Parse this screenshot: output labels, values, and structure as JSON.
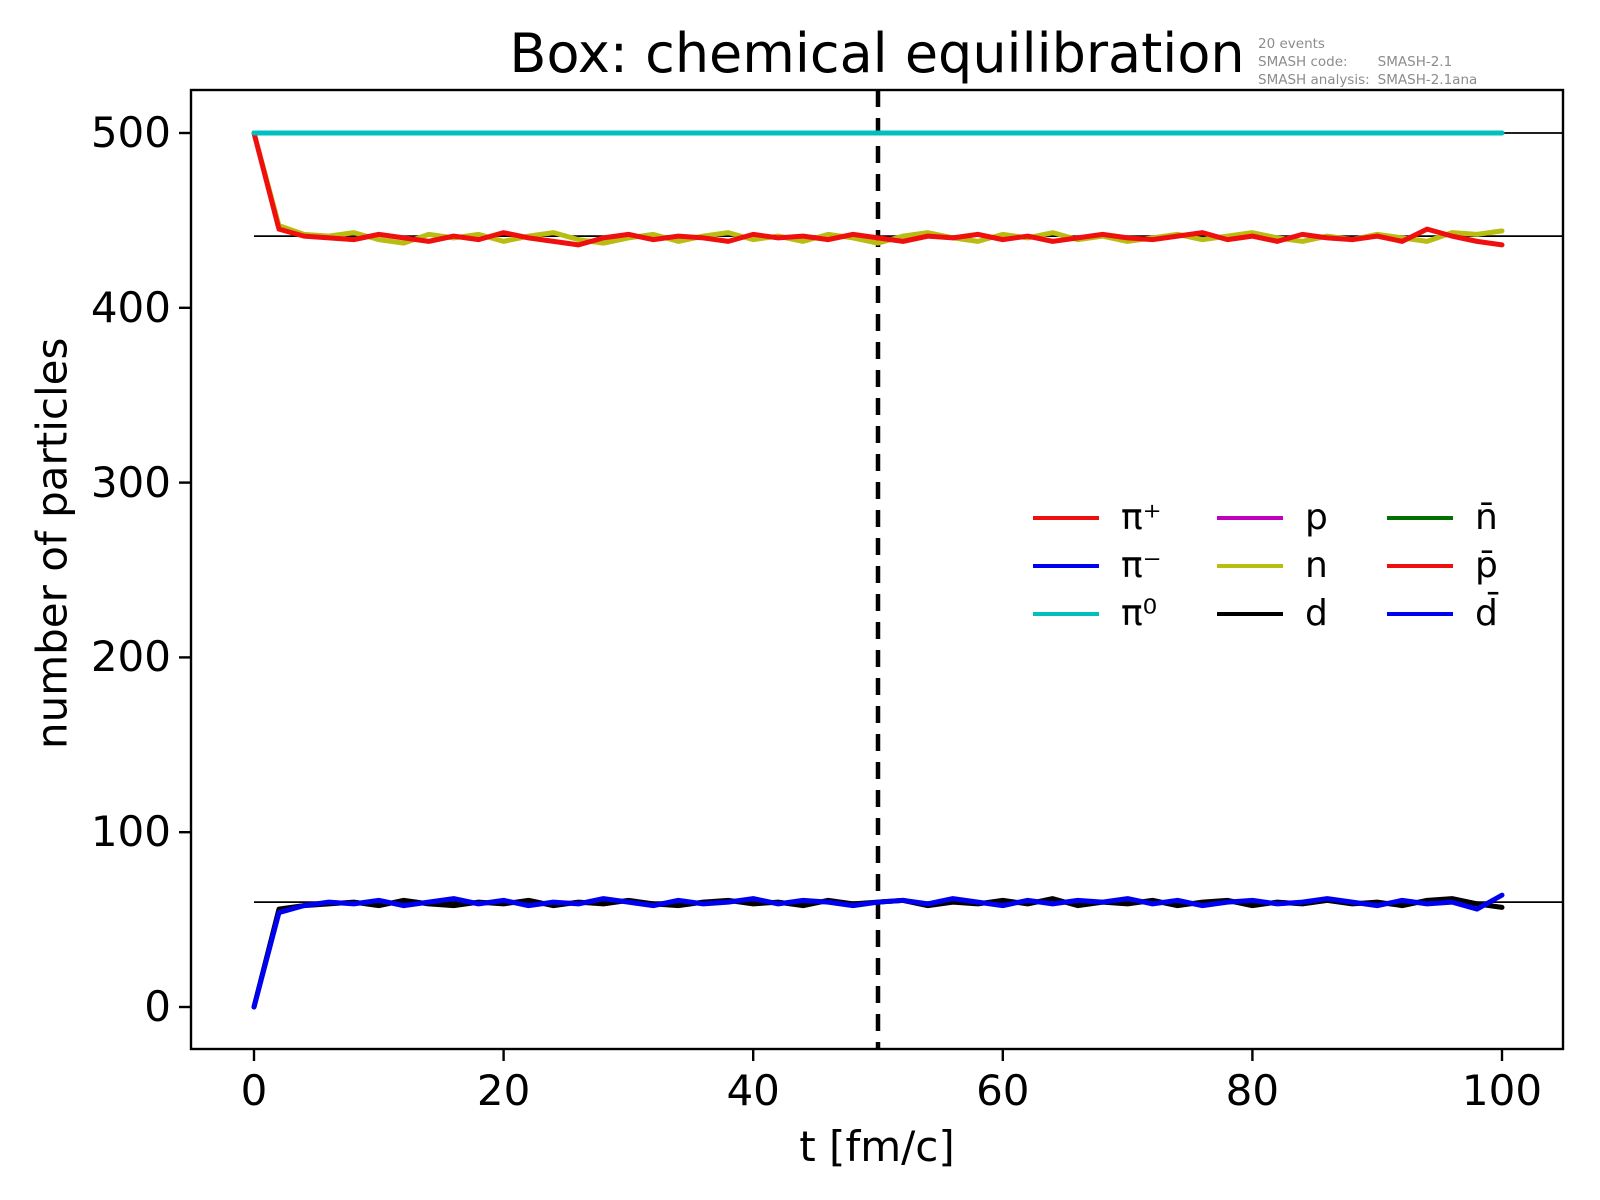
{
  "title": "Box: chemical equilibration",
  "watermark": {
    "events_line": "20 events",
    "code_label": "SMASH code:",
    "code_value": "SMASH-2.1",
    "analysis_label": "SMASH analysis:",
    "analysis_value": "SMASH-2.1ana"
  },
  "chart_data": {
    "type": "line",
    "title": "Box: chemical equilibration",
    "xlabel": "t [fm/c]",
    "ylabel": "number of particles",
    "xlim": [
      -5.05,
      104.9
    ],
    "ylim": [
      -24,
      524.6
    ],
    "x_ticks": [
      0,
      20,
      40,
      60,
      80,
      100
    ],
    "y_ticks": [
      0,
      100,
      200,
      300,
      400,
      500
    ],
    "grid": false,
    "x": [
      0,
      2,
      4,
      6,
      8,
      10,
      12,
      14,
      16,
      18,
      20,
      22,
      24,
      26,
      28,
      30,
      32,
      34,
      36,
      38,
      40,
      42,
      44,
      46,
      48,
      50,
      52,
      54,
      56,
      58,
      60,
      62,
      64,
      66,
      68,
      70,
      72,
      74,
      76,
      78,
      80,
      82,
      84,
      86,
      88,
      90,
      92,
      94,
      96,
      98,
      100
    ],
    "series": [
      {
        "id": "n",
        "name": "n",
        "color": "#b9bd11",
        "values": [
          500,
          447,
          442,
          441,
          443,
          439,
          437,
          442,
          440,
          442,
          438,
          441,
          443,
          439,
          437,
          440,
          442,
          438,
          441,
          443,
          439,
          441,
          438,
          442,
          440,
          437,
          441,
          443,
          440,
          438,
          442,
          440,
          443,
          439,
          441,
          438,
          440,
          442,
          439,
          441,
          443,
          440,
          438,
          441,
          439,
          442,
          440,
          438,
          443,
          442,
          444
        ]
      },
      {
        "id": "pi-plus",
        "name": "π⁺",
        "color": "#f00f0f",
        "values": [
          500,
          445,
          441,
          440,
          439,
          442,
          440,
          438,
          441,
          439,
          443,
          440,
          438,
          436,
          440,
          442,
          439,
          441,
          440,
          438,
          442,
          440,
          441,
          439,
          442,
          440,
          438,
          441,
          440,
          442,
          439,
          441,
          438,
          440,
          442,
          440,
          439,
          441,
          443,
          439,
          441,
          438,
          442,
          440,
          439,
          441,
          438,
          445,
          441,
          438,
          436
        ]
      },
      {
        "id": "d",
        "name": "d",
        "color": "#000000",
        "values": [
          0,
          56,
          58,
          59,
          60,
          58,
          61,
          59,
          58,
          60,
          59,
          61,
          58,
          60,
          59,
          61,
          59,
          58,
          60,
          61,
          59,
          60,
          58,
          61,
          59,
          60,
          61,
          58,
          60,
          59,
          61,
          59,
          62,
          58,
          60,
          59,
          61,
          58,
          60,
          61,
          58,
          60,
          59,
          61,
          59,
          60,
          58,
          61,
          62,
          59,
          57
        ]
      },
      {
        "id": "pi-minus",
        "name": "π⁻",
        "color": "#0000f0",
        "values": [
          0,
          54,
          58,
          60,
          59,
          61,
          58,
          60,
          62,
          59,
          61,
          58,
          60,
          59,
          62,
          60,
          58,
          61,
          59,
          60,
          62,
          59,
          61,
          60,
          58,
          60,
          61,
          59,
          62,
          60,
          58,
          61,
          59,
          61,
          60,
          62,
          59,
          61,
          58,
          60,
          61,
          59,
          60,
          62,
          60,
          58,
          61,
          59,
          60,
          56,
          64
        ]
      },
      {
        "id": "pi0",
        "name": "π⁰",
        "color": "#00bfbf",
        "constant": 500
      }
    ],
    "hidden_overlapping_series_note": "p (magenta), n̄ (green), p̄ (red) and d̄ (blue) coincide with the plotted curves and are not separately resolvable in the image.",
    "reference_lines": {
      "color": "#000000",
      "values": [
        500,
        441,
        60
      ]
    },
    "vline": {
      "x": 50,
      "style": "dashed",
      "color": "#000000"
    },
    "legend": {
      "position": "center-right",
      "frame": false,
      "columns": [
        [
          {
            "label": "π⁺",
            "color": "#f00f0f"
          },
          {
            "label": "π⁻",
            "color": "#0000f0"
          },
          {
            "label": "π⁰",
            "color": "#00bfbf"
          }
        ],
        [
          {
            "label": "p",
            "color": "#bf00bf"
          },
          {
            "label": "n",
            "color": "#b9bd11"
          },
          {
            "label": "d",
            "color": "#000000"
          }
        ],
        [
          {
            "label": "n̄",
            "color": "#007000"
          },
          {
            "label": "p̄",
            "color": "#f00f0f"
          },
          {
            "label": "d̄",
            "color": "#0000f0"
          }
        ]
      ]
    }
  }
}
